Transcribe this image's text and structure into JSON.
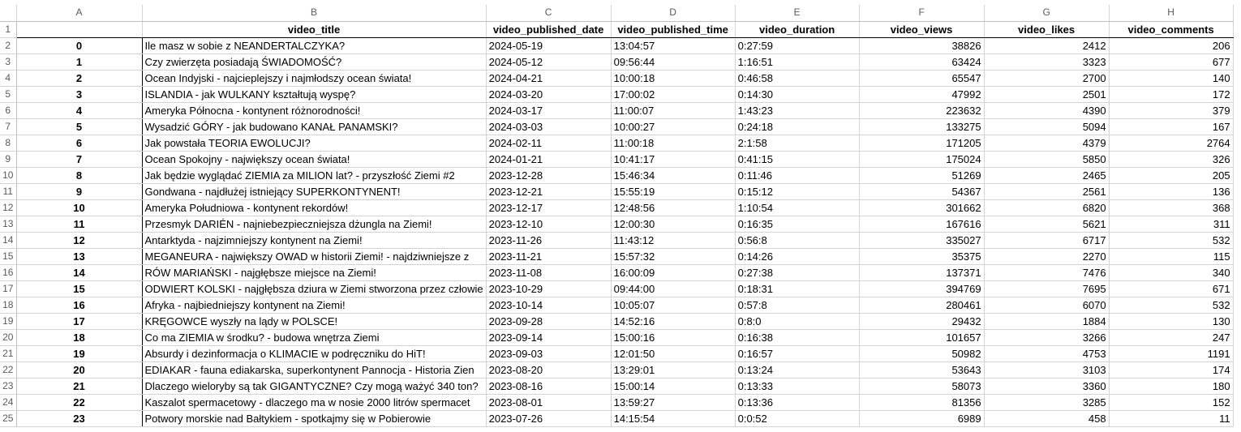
{
  "columns": [
    "A",
    "B",
    "C",
    "D",
    "E",
    "F",
    "G",
    "H"
  ],
  "header": [
    "",
    "video_title",
    "video_published_date",
    "video_published_time",
    "video_duration",
    "video_views",
    "video_likes",
    "video_comments"
  ],
  "rows": [
    [
      "0",
      "Ile masz w sobie z NEANDERTALCZYKA?",
      "2024-05-19",
      "13:04:57",
      "0:27:59",
      "38826",
      "2412",
      "206"
    ],
    [
      "1",
      "Czy zwierzęta posiadają ŚWIADOMOŚĆ?",
      "2024-05-12",
      "09:56:44",
      "1:16:51",
      "63424",
      "3323",
      "677"
    ],
    [
      "2",
      "Ocean Indyjski - najcieplejszy i najmłodszy ocean świata!",
      "2024-04-21",
      "10:00:18",
      "0:46:58",
      "65547",
      "2700",
      "140"
    ],
    [
      "3",
      "ISLANDIA - jak WULKANY kształtują wyspę?",
      "2024-03-20",
      "17:00:02",
      "0:14:30",
      "47992",
      "2501",
      "172"
    ],
    [
      "4",
      "Ameryka Północna - kontynent różnorodności!",
      "2024-03-17",
      "11:00:07",
      "1:43:23",
      "223632",
      "4390",
      "379"
    ],
    [
      "5",
      "Wysadzić GÓRY - jak budowano KANAŁ PANAMSKI?",
      "2024-03-03",
      "10:00:27",
      "0:24:18",
      "133275",
      "5094",
      "167"
    ],
    [
      "6",
      "Jak powstała TEORIA EWOLUCJI?",
      "2024-02-11",
      "11:00:18",
      "2:1:58",
      "171205",
      "4379",
      "2764"
    ],
    [
      "7",
      "Ocean Spokojny - największy ocean świata!",
      "2024-01-21",
      "10:41:17",
      "0:41:15",
      "175024",
      "5850",
      "326"
    ],
    [
      "8",
      "Jak będzie wyglądać ZIEMIA za MILION lat? - przyszłość Ziemi #2",
      "2023-12-28",
      "15:46:34",
      "0:11:46",
      "51269",
      "2465",
      "205"
    ],
    [
      "9",
      "Gondwana - najdłużej istniejący SUPERKONTYNENT!",
      "2023-12-21",
      "15:55:19",
      "0:15:12",
      "54367",
      "2561",
      "136"
    ],
    [
      "10",
      "Ameryka Południowa - kontynent rekordów!",
      "2023-12-17",
      "12:48:56",
      "1:10:54",
      "301662",
      "6820",
      "368"
    ],
    [
      "11",
      "Przesmyk DARIÉN - najniebezpieczniejsza dżungla na Ziemi!",
      "2023-12-10",
      "12:00:30",
      "0:16:35",
      "167616",
      "5621",
      "311"
    ],
    [
      "12",
      "Antarktyda - najzimniejszy kontynent na Ziemi!",
      "2023-11-26",
      "11:43:12",
      "0:56:8",
      "335027",
      "6717",
      "532"
    ],
    [
      "13",
      "MEGANEURA - największy OWAD w historii Ziemi! - najdziwniejsze z",
      "2023-11-21",
      "15:57:32",
      "0:14:26",
      "35375",
      "2270",
      "115"
    ],
    [
      "14",
      "RÓW MARIAŃSKI - najgłębsze miejsce na Ziemi!",
      "2023-11-08",
      "16:00:09",
      "0:27:38",
      "137371",
      "7476",
      "340"
    ],
    [
      "15",
      "ODWIERT KOLSKI - najgłębsza dziura w Ziemi stworzona przez człowie",
      "2023-10-29",
      "09:44:00",
      "0:18:31",
      "394769",
      "7695",
      "671"
    ],
    [
      "16",
      "Afryka - najbiedniejszy kontynent na Ziemi!",
      "2023-10-14",
      "10:05:07",
      "0:57:8",
      "280461",
      "6070",
      "532"
    ],
    [
      "17",
      "KRĘGOWCE wyszły na lądy w POLSCE!",
      "2023-09-28",
      "14:52:16",
      "0:8:0",
      "29432",
      "1884",
      "130"
    ],
    [
      "18",
      "Co ma ZIEMIA w środku? - budowa wnętrza Ziemi",
      "2023-09-14",
      "15:00:16",
      "0:16:38",
      "101657",
      "3266",
      "247"
    ],
    [
      "19",
      "Absurdy i dezinformacja o KLIMACIE w podręczniku do HiT!",
      "2023-09-03",
      "12:01:50",
      "0:16:57",
      "50982",
      "4753",
      "1191"
    ],
    [
      "20",
      "EDIAKAR - fauna ediakarska, superkontynent Pannocja - Historia Zien",
      "2023-08-20",
      "13:29:01",
      "0:13:24",
      "53643",
      "3103",
      "174"
    ],
    [
      "21",
      "Dlaczego wieloryby są tak GIGANTYCZNE? Czy mogą ważyć 340 ton?",
      "2023-08-16",
      "15:00:14",
      "0:13:33",
      "58073",
      "3360",
      "180"
    ],
    [
      "22",
      "Kaszalot spermacetowy - dlaczego ma w nosie 2000 litrów spermacet",
      "2023-08-01",
      "13:59:27",
      "0:13:36",
      "81356",
      "3285",
      "152"
    ],
    [
      "23",
      "Potwory morskie nad Bałtykiem - spotkajmy się w Pobierowie",
      "2023-07-26",
      "14:15:54",
      "0:0:52",
      "6989",
      "458",
      "11"
    ]
  ]
}
